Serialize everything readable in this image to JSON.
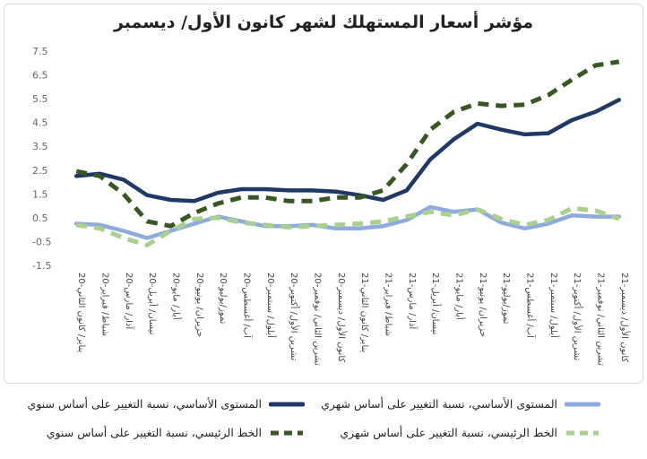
{
  "chart_data": {
    "type": "line",
    "title": "مؤشر أسعار المستهلك لشهر كانون الأول/ ديسمبر",
    "xlabel": "",
    "ylabel": "",
    "ylim": [
      -1.5,
      7.5
    ],
    "yticks": [
      "7.5",
      "6.5",
      "5.5",
      "4.5",
      "3.5",
      "2.5",
      "1.5",
      "0.5",
      "-0.5",
      "-1.5"
    ],
    "ytick_values": [
      7.5,
      6.5,
      5.5,
      4.5,
      3.5,
      2.5,
      1.5,
      0.5,
      -0.5,
      -1.5
    ],
    "categories": [
      "20-يناير/ كانون الثاني",
      "20-شباط/ فبراير",
      "20-آذار/ مارس",
      "20-نيسان/ أبريل",
      "20-أيار/ مايو",
      "20-حزيران/ يونيو",
      "20-تموز/يوليو",
      "20-آب/ أغسطس",
      "20-أيلول/ سبتمبر",
      "20-تشرين الأول/ أكتوبر",
      "20-تشرين الثاني/ نوفمبر",
      "20-كانون الأول/ ديسمبر",
      "21-يناير/ كانون الثاني",
      "21-شباط/ فبراير",
      "21-آذار/ مارس",
      "21-نيسان/ أبريل",
      "21-أيار/ مايو",
      "21-حزيران/ يونيو",
      "21-تموز/يوليو",
      "21-آب/ أغسطس",
      "21-أيلول/ سبتمبر",
      "21-تشرين الأول/ أكتوبر",
      "21-تشرين الثاني/ نوفمبر",
      "21-كانون الأول/ ديسمبر"
    ],
    "series": [
      {
        "name": "المستوى الأساسي، نسبة التغيير على أساس سنوي",
        "color": "#1f3864",
        "style": "solid",
        "width": 4.5,
        "values": [
          2.25,
          2.35,
          2.1,
          1.45,
          1.25,
          1.2,
          1.55,
          1.7,
          1.7,
          1.65,
          1.65,
          1.6,
          1.45,
          1.25,
          1.65,
          2.95,
          3.8,
          4.45,
          4.2,
          4.0,
          4.05,
          4.6,
          4.95,
          5.45
        ]
      },
      {
        "name": "المستوى الأساسي، نسبة التغيير على أساس شهري",
        "color": "#8faadc",
        "style": "solid",
        "width": 4.5,
        "values": [
          0.25,
          0.2,
          -0.05,
          -0.35,
          -0.05,
          0.25,
          0.55,
          0.35,
          0.15,
          0.15,
          0.2,
          0.05,
          0.05,
          0.15,
          0.4,
          0.95,
          0.75,
          0.85,
          0.3,
          0.05,
          0.25,
          0.6,
          0.55,
          0.55
        ]
      },
      {
        "name": "الخط الرئيسي، نسبة التغيير على أساس سنوي",
        "color": "#385723",
        "style": "dashed",
        "width": 5,
        "values": [
          2.45,
          2.25,
          1.5,
          0.35,
          0.15,
          0.7,
          1.1,
          1.35,
          1.35,
          1.2,
          1.2,
          1.35,
          1.35,
          1.65,
          2.75,
          4.2,
          4.95,
          5.3,
          5.2,
          5.25,
          5.65,
          6.3,
          6.9,
          7.05
        ]
      },
      {
        "name": "الخط الرئيسي، نسبة التغيير على أساس شهري",
        "color": "#a9d18e",
        "style": "dashed",
        "width": 5,
        "values": [
          0.2,
          0.05,
          -0.35,
          -0.65,
          -0.05,
          0.45,
          0.5,
          0.3,
          0.2,
          0.1,
          0.15,
          0.2,
          0.25,
          0.35,
          0.55,
          0.75,
          0.6,
          0.85,
          0.45,
          0.2,
          0.4,
          0.9,
          0.8,
          0.45
        ]
      }
    ],
    "legend_placement": "bottom",
    "grid": false
  }
}
